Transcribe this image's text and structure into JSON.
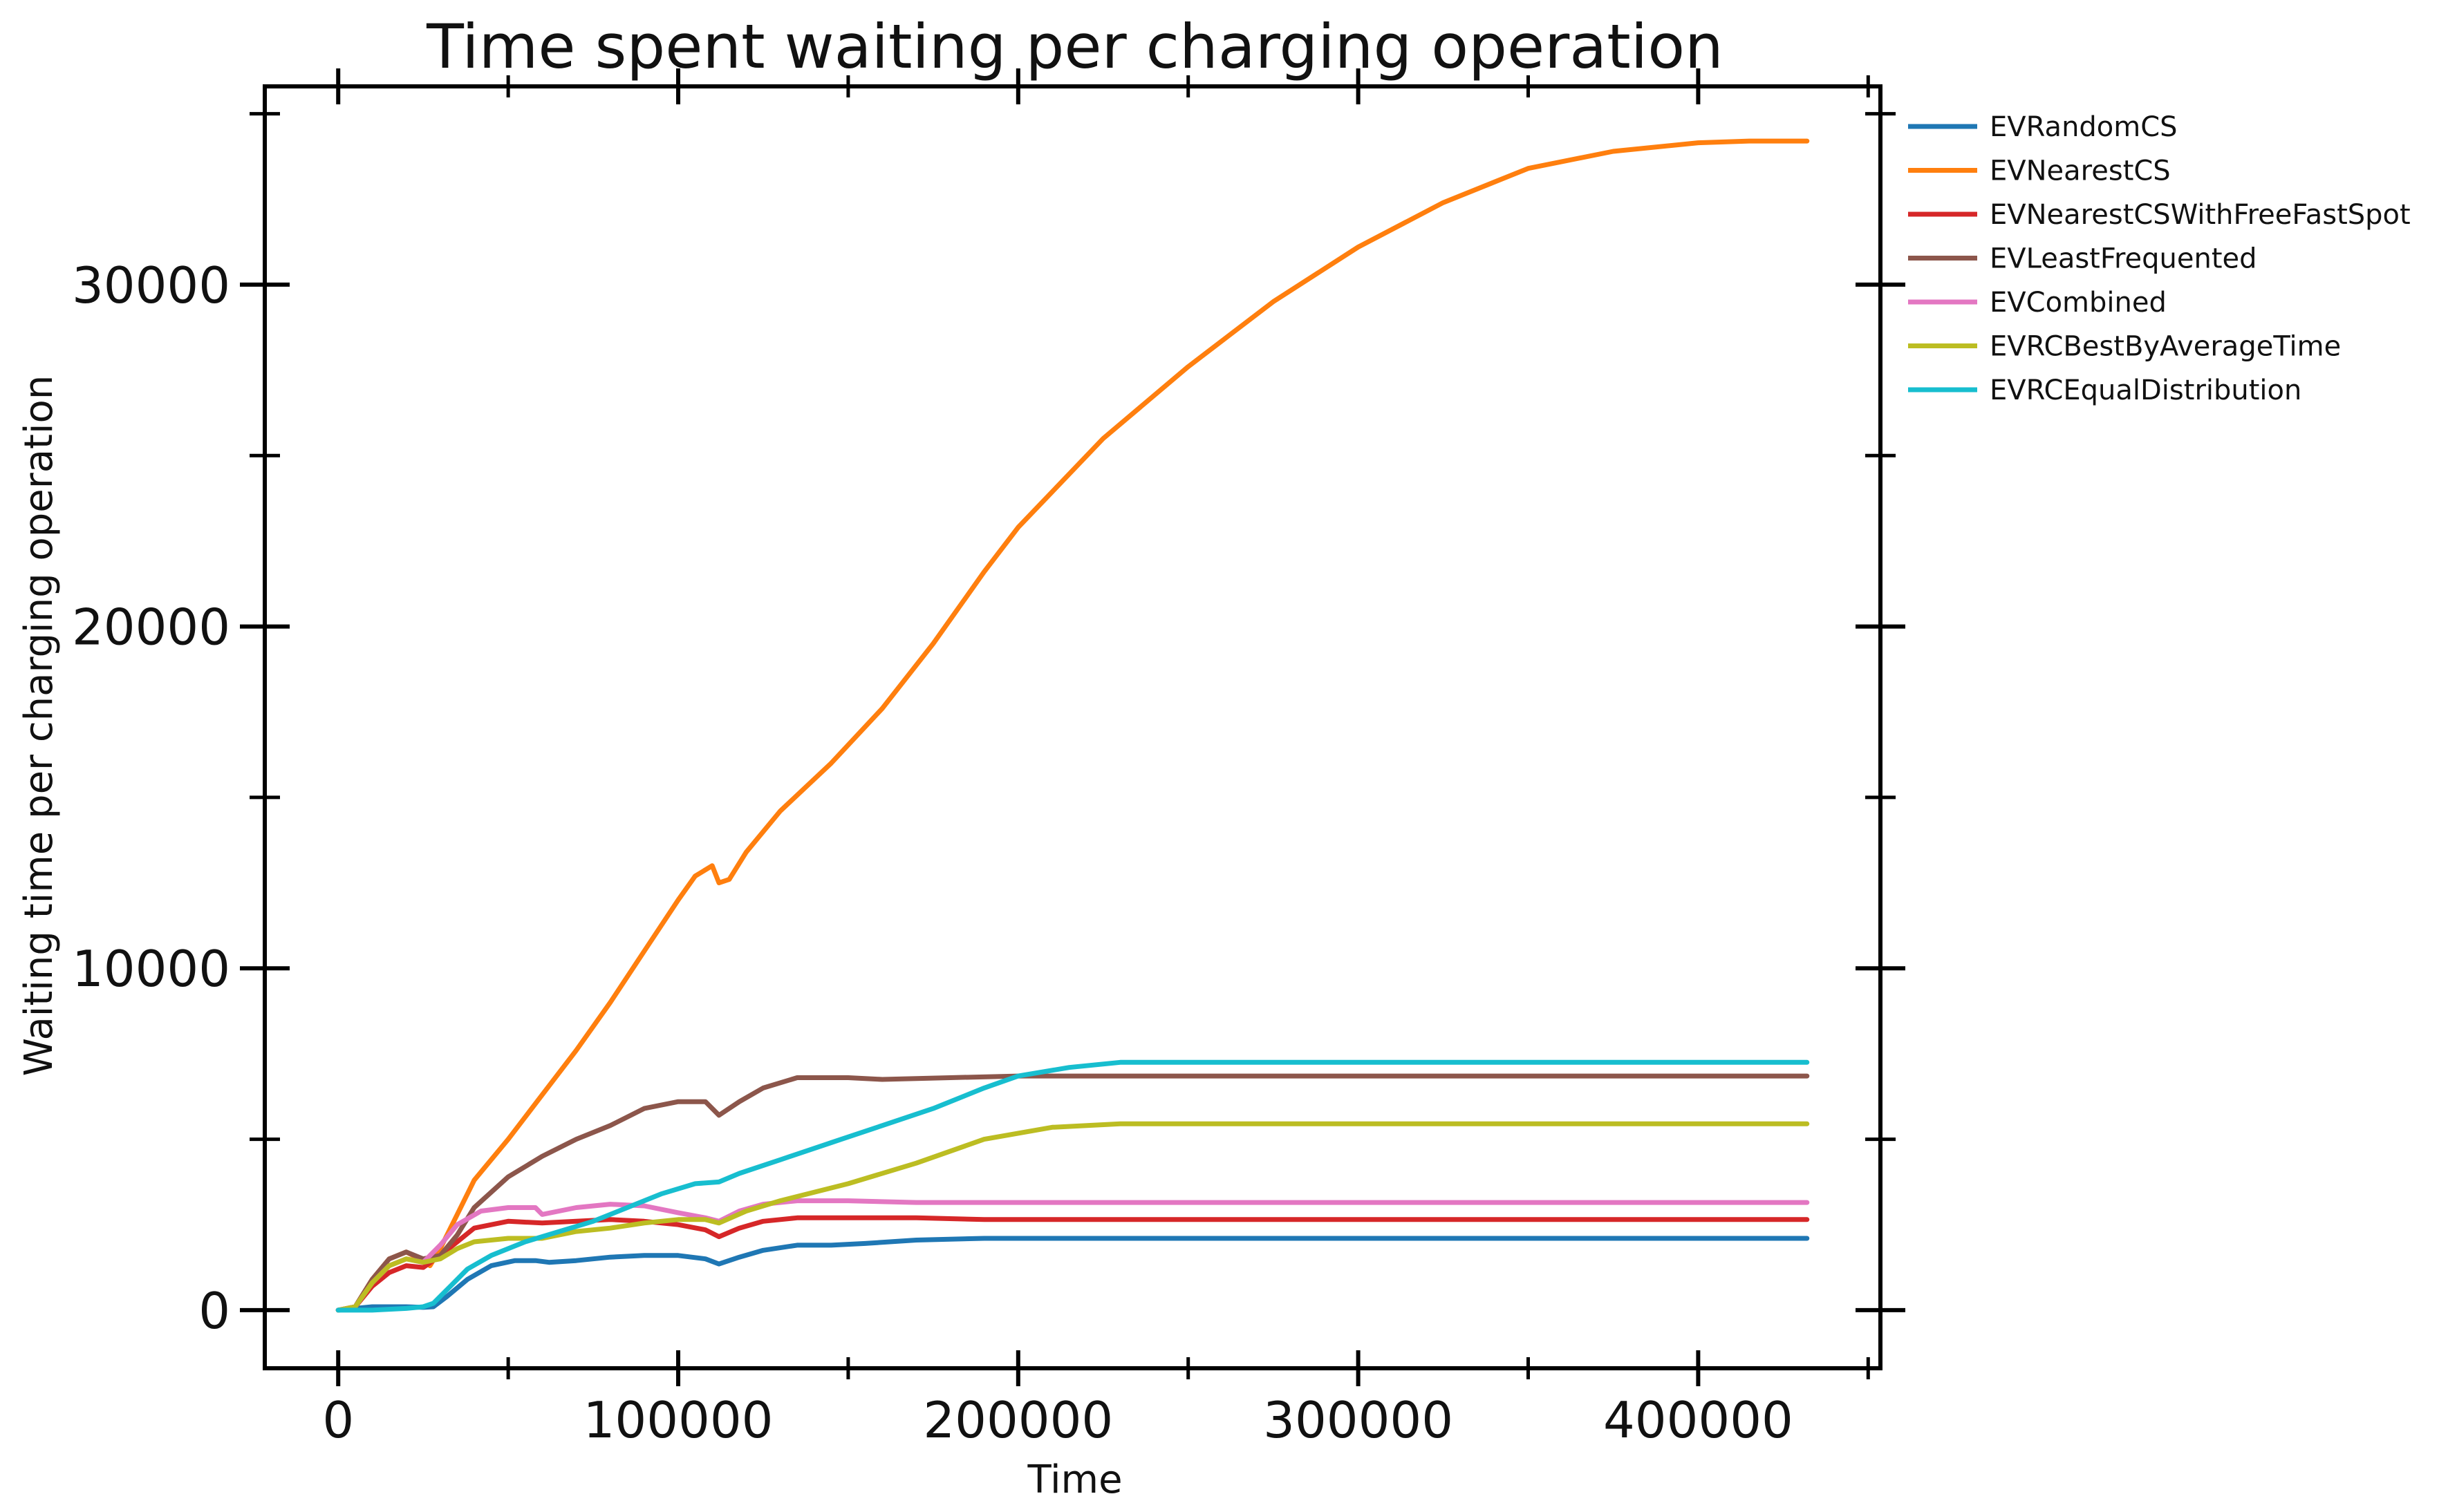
{
  "chart_data": {
    "type": "line",
    "title": "Time spent waiting per charging operation",
    "xlabel": "Time",
    "ylabel": "Waiting time per charging operation",
    "xlim": [
      -21600,
      453600
    ],
    "ylim": [
      -1700,
      35800
    ],
    "x_ticks": [
      0,
      100000,
      200000,
      300000,
      400000
    ],
    "x_tick_labels": [
      "0",
      "100000",
      "200000",
      "300000",
      "400000"
    ],
    "x_minor_ticks": [
      50000,
      150000,
      250000,
      350000,
      450000
    ],
    "y_ticks": [
      0,
      10000,
      20000,
      30000
    ],
    "y_tick_labels": [
      "0",
      "10000",
      "20000",
      "30000"
    ],
    "y_minor_ticks": [
      5000,
      15000,
      25000,
      35000
    ],
    "grid": false,
    "legend_position": "outside-right-top",
    "series": [
      {
        "name": "EVRandomCS",
        "color": "#1f77b4",
        "points": [
          [
            0,
            0
          ],
          [
            5000,
            50
          ],
          [
            10000,
            100
          ],
          [
            20000,
            100
          ],
          [
            25000,
            80
          ],
          [
            28000,
            100
          ],
          [
            32000,
            400
          ],
          [
            38000,
            900
          ],
          [
            45000,
            1300
          ],
          [
            52000,
            1450
          ],
          [
            58000,
            1450
          ],
          [
            62000,
            1400
          ],
          [
            70000,
            1450
          ],
          [
            80000,
            1550
          ],
          [
            90000,
            1600
          ],
          [
            100000,
            1600
          ],
          [
            108000,
            1500
          ],
          [
            112000,
            1350
          ],
          [
            118000,
            1550
          ],
          [
            125000,
            1750
          ],
          [
            135000,
            1900
          ],
          [
            145000,
            1900
          ],
          [
            155000,
            1950
          ],
          [
            170000,
            2050
          ],
          [
            190000,
            2100
          ],
          [
            220000,
            2100
          ],
          [
            300000,
            2100
          ],
          [
            432000,
            2100
          ]
        ]
      },
      {
        "name": "EVNearestCS",
        "color": "#ff7f0e",
        "points": [
          [
            0,
            0
          ],
          [
            5000,
            100
          ],
          [
            10000,
            900
          ],
          [
            15000,
            1500
          ],
          [
            20000,
            1700
          ],
          [
            24000,
            1500
          ],
          [
            27000,
            1300
          ],
          [
            30000,
            1800
          ],
          [
            35000,
            2800
          ],
          [
            40000,
            3800
          ],
          [
            50000,
            5000
          ],
          [
            60000,
            6300
          ],
          [
            70000,
            7600
          ],
          [
            80000,
            9000
          ],
          [
            90000,
            10500
          ],
          [
            100000,
            12000
          ],
          [
            105000,
            12700
          ],
          [
            110000,
            13000
          ],
          [
            112000,
            12500
          ],
          [
            115000,
            12600
          ],
          [
            120000,
            13400
          ],
          [
            130000,
            14600
          ],
          [
            145000,
            16000
          ],
          [
            160000,
            17600
          ],
          [
            175000,
            19500
          ],
          [
            190000,
            21600
          ],
          [
            200000,
            22900
          ],
          [
            225000,
            25500
          ],
          [
            250000,
            27600
          ],
          [
            275000,
            29500
          ],
          [
            300000,
            31100
          ],
          [
            325000,
            32400
          ],
          [
            350000,
            33400
          ],
          [
            375000,
            33900
          ],
          [
            400000,
            34150
          ],
          [
            415000,
            34200
          ],
          [
            432000,
            34200
          ]
        ]
      },
      {
        "name": "EVNearestCSWithFreeFastSpot",
        "color": "#d62728",
        "points": [
          [
            0,
            0
          ],
          [
            5000,
            100
          ],
          [
            10000,
            700
          ],
          [
            15000,
            1100
          ],
          [
            20000,
            1300
          ],
          [
            25000,
            1250
          ],
          [
            30000,
            1600
          ],
          [
            35000,
            2000
          ],
          [
            40000,
            2400
          ],
          [
            50000,
            2600
          ],
          [
            60000,
            2550
          ],
          [
            70000,
            2600
          ],
          [
            80000,
            2650
          ],
          [
            90000,
            2600
          ],
          [
            100000,
            2500
          ],
          [
            108000,
            2350
          ],
          [
            112000,
            2150
          ],
          [
            118000,
            2400
          ],
          [
            125000,
            2600
          ],
          [
            135000,
            2700
          ],
          [
            150000,
            2700
          ],
          [
            170000,
            2700
          ],
          [
            190000,
            2650
          ],
          [
            250000,
            2650
          ],
          [
            432000,
            2650
          ]
        ]
      },
      {
        "name": "EVLeastFrequented",
        "color": "#8c564b",
        "points": [
          [
            0,
            0
          ],
          [
            5000,
            100
          ],
          [
            10000,
            900
          ],
          [
            15000,
            1500
          ],
          [
            20000,
            1700
          ],
          [
            25000,
            1500
          ],
          [
            30000,
            1600
          ],
          [
            35000,
            2200
          ],
          [
            40000,
            3000
          ],
          [
            50000,
            3900
          ],
          [
            60000,
            4500
          ],
          [
            70000,
            5000
          ],
          [
            80000,
            5400
          ],
          [
            90000,
            5900
          ],
          [
            100000,
            6100
          ],
          [
            108000,
            6100
          ],
          [
            112000,
            5700
          ],
          [
            118000,
            6100
          ],
          [
            125000,
            6500
          ],
          [
            135000,
            6800
          ],
          [
            150000,
            6800
          ],
          [
            160000,
            6750
          ],
          [
            180000,
            6800
          ],
          [
            200000,
            6850
          ],
          [
            250000,
            6850
          ],
          [
            432000,
            6850
          ]
        ]
      },
      {
        "name": "EVCombined",
        "color": "#e377c2",
        "points": [
          [
            0,
            0
          ],
          [
            5000,
            100
          ],
          [
            10000,
            800
          ],
          [
            15000,
            1300
          ],
          [
            20000,
            1500
          ],
          [
            25000,
            1400
          ],
          [
            30000,
            1900
          ],
          [
            35000,
            2500
          ],
          [
            42000,
            2900
          ],
          [
            50000,
            3000
          ],
          [
            58000,
            3000
          ],
          [
            60000,
            2800
          ],
          [
            70000,
            3000
          ],
          [
            80000,
            3100
          ],
          [
            90000,
            3050
          ],
          [
            100000,
            2850
          ],
          [
            108000,
            2700
          ],
          [
            112000,
            2600
          ],
          [
            118000,
            2900
          ],
          [
            125000,
            3100
          ],
          [
            135000,
            3200
          ],
          [
            150000,
            3200
          ],
          [
            170000,
            3150
          ],
          [
            200000,
            3150
          ],
          [
            250000,
            3150
          ],
          [
            432000,
            3150
          ]
        ]
      },
      {
        "name": "EVRCBestByAverageTime",
        "color": "#bcbd22",
        "points": [
          [
            0,
            0
          ],
          [
            5000,
            100
          ],
          [
            10000,
            800
          ],
          [
            15000,
            1300
          ],
          [
            20000,
            1500
          ],
          [
            25000,
            1400
          ],
          [
            30000,
            1500
          ],
          [
            35000,
            1800
          ],
          [
            40000,
            2000
          ],
          [
            50000,
            2100
          ],
          [
            60000,
            2100
          ],
          [
            70000,
            2300
          ],
          [
            80000,
            2400
          ],
          [
            90000,
            2550
          ],
          [
            100000,
            2650
          ],
          [
            108000,
            2650
          ],
          [
            112000,
            2550
          ],
          [
            120000,
            2900
          ],
          [
            130000,
            3200
          ],
          [
            150000,
            3700
          ],
          [
            170000,
            4300
          ],
          [
            190000,
            5000
          ],
          [
            210000,
            5350
          ],
          [
            230000,
            5450
          ],
          [
            260000,
            5450
          ],
          [
            432000,
            5450
          ]
        ]
      },
      {
        "name": "EVRCEqualDistribution",
        "color": "#17becf",
        "points": [
          [
            0,
            0
          ],
          [
            10000,
            0
          ],
          [
            20000,
            50
          ],
          [
            25000,
            100
          ],
          [
            28000,
            200
          ],
          [
            33000,
            700
          ],
          [
            38000,
            1200
          ],
          [
            45000,
            1600
          ],
          [
            55000,
            2000
          ],
          [
            65000,
            2300
          ],
          [
            75000,
            2600
          ],
          [
            85000,
            3000
          ],
          [
            95000,
            3400
          ],
          [
            105000,
            3700
          ],
          [
            112000,
            3750
          ],
          [
            118000,
            4000
          ],
          [
            130000,
            4400
          ],
          [
            145000,
            4900
          ],
          [
            160000,
            5400
          ],
          [
            175000,
            5900
          ],
          [
            190000,
            6500
          ],
          [
            200000,
            6850
          ],
          [
            215000,
            7100
          ],
          [
            230000,
            7250
          ],
          [
            250000,
            7250
          ],
          [
            432000,
            7250
          ]
        ]
      }
    ]
  }
}
